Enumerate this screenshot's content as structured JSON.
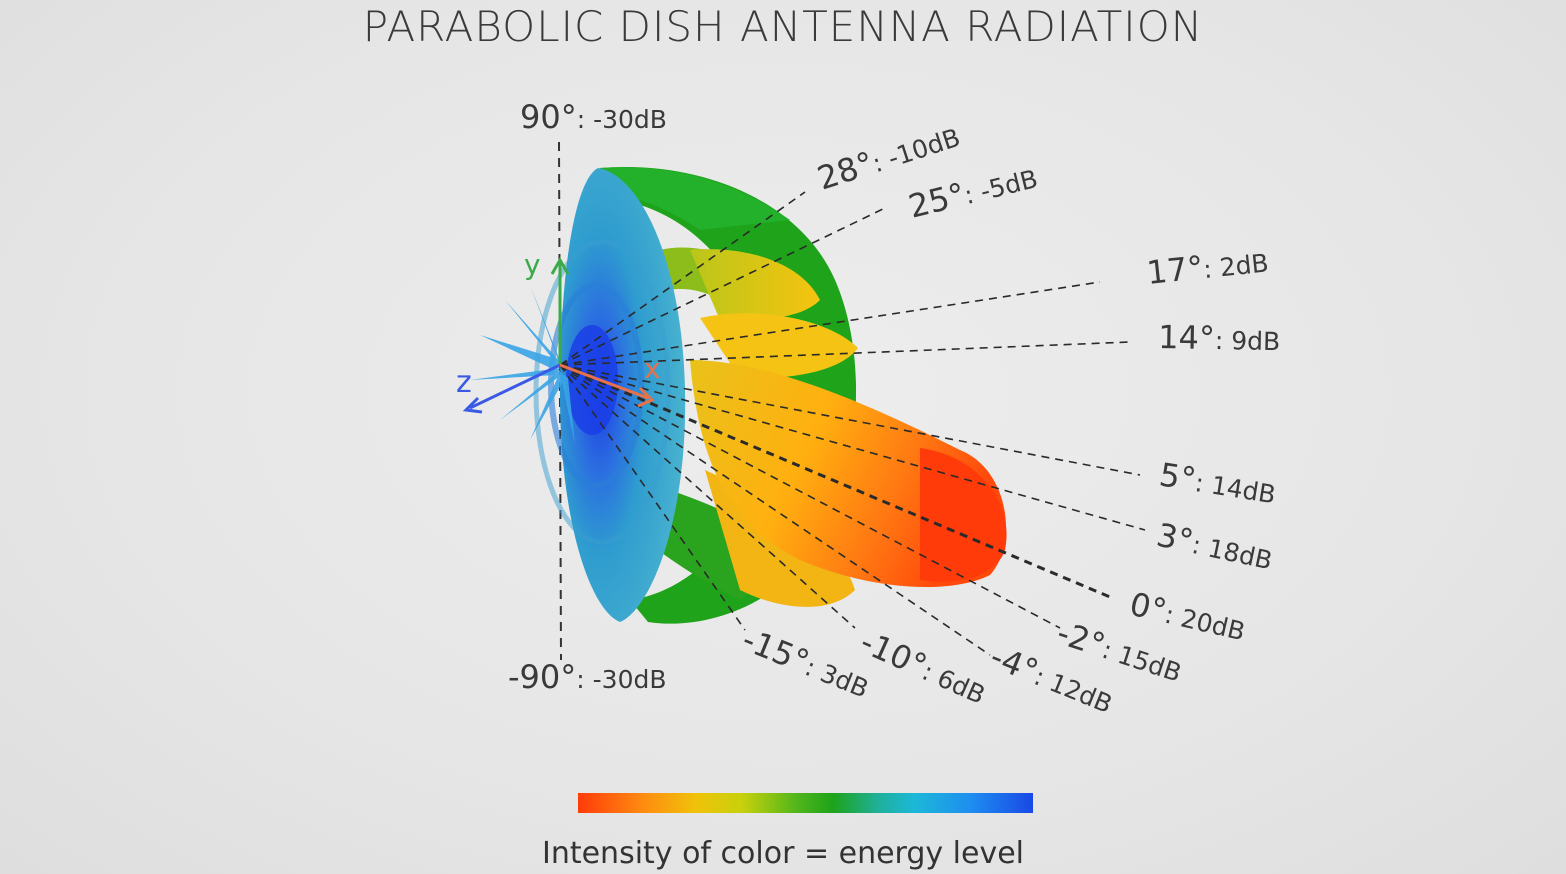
{
  "title": "PARABOLIC DISH ANTENNA RADIATION",
  "caption": "Intensity of color = energy level",
  "axes": {
    "x": "x",
    "y": "y",
    "z": "z"
  },
  "labels": [
    {
      "id": "p90",
      "angle": "90°",
      "db": "-30dB"
    },
    {
      "id": "p28",
      "angle": "28°",
      "db": "-10dB"
    },
    {
      "id": "p25",
      "angle": "25°",
      "db": "-5dB"
    },
    {
      "id": "p17",
      "angle": "17°",
      "db": "2dB"
    },
    {
      "id": "p14",
      "angle": "14°",
      "db": "9dB"
    },
    {
      "id": "p5",
      "angle": "5°",
      "db": "14dB"
    },
    {
      "id": "p3",
      "angle": "3°",
      "db": "18dB"
    },
    {
      "id": "p0",
      "angle": "0°",
      "db": "20dB"
    },
    {
      "id": "n2",
      "angle": "-2°",
      "db": "15dB"
    },
    {
      "id": "n4",
      "angle": "-4°",
      "db": "12dB"
    },
    {
      "id": "n10",
      "angle": "-10°",
      "db": "6dB"
    },
    {
      "id": "n15",
      "angle": "-15°",
      "db": "3dB"
    },
    {
      "id": "n90",
      "angle": "-90°",
      "db": "-30dB"
    }
  ],
  "colors": {
    "red": "#ff3b0a",
    "orange": "#ff9a10",
    "yellow": "#f2c30c",
    "green": "#1ea31a",
    "teal": "#31a9c9",
    "blue": "#1a48e6"
  }
}
